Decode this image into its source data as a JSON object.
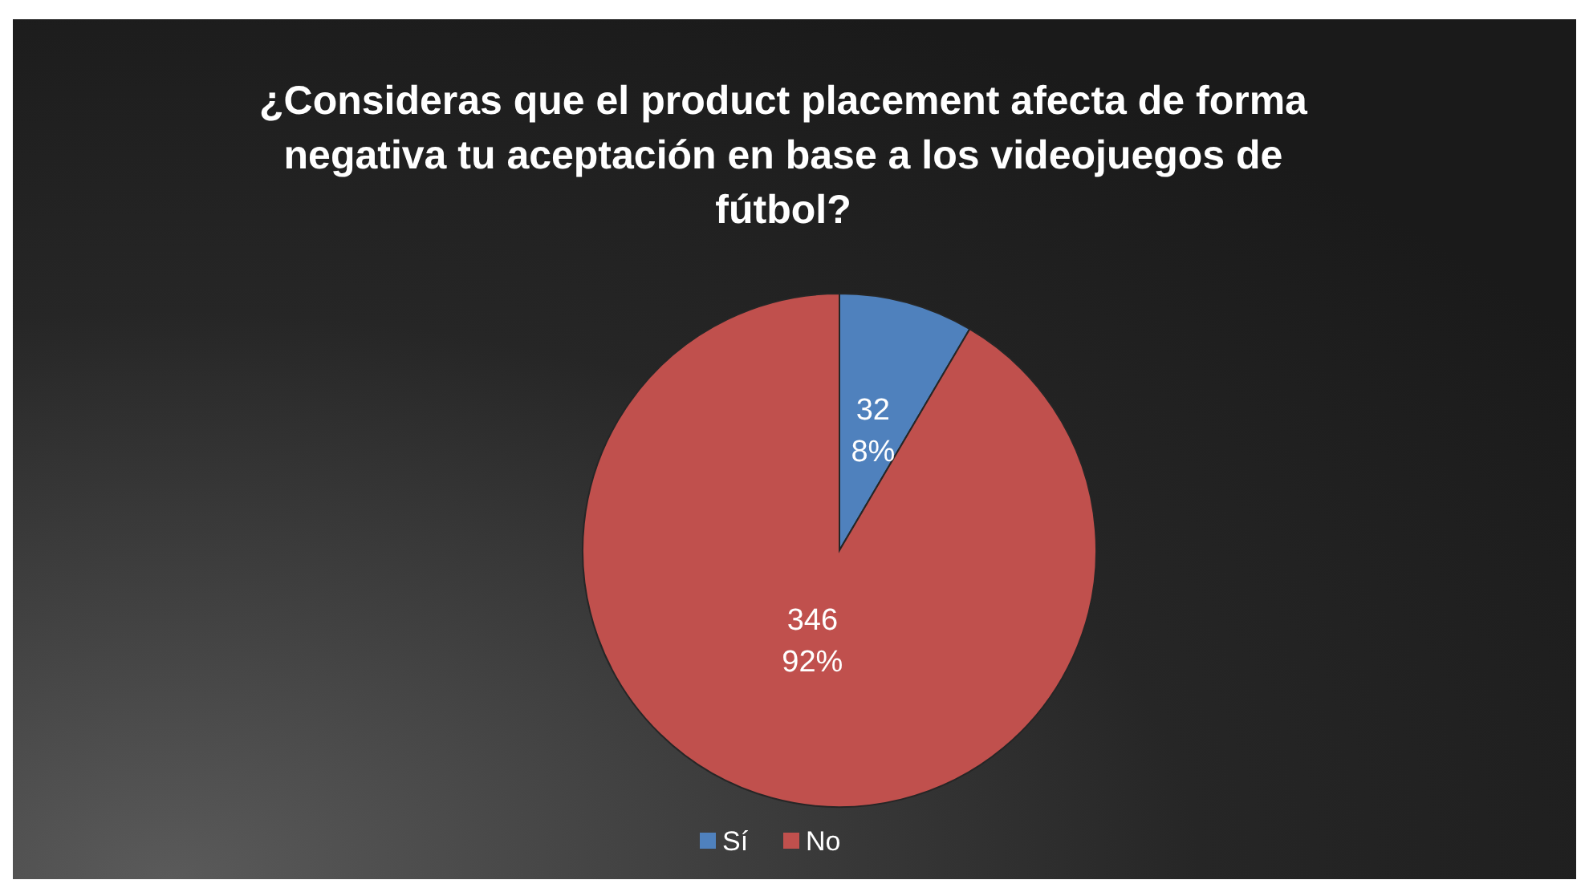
{
  "chart_data": {
    "type": "pie",
    "title": "¿Consideras que el product placement afecta de forma negativa tu aceptación en base a los videojuegos de fútbol?",
    "categories": [
      "Sí",
      "No"
    ],
    "values": [
      32,
      346
    ],
    "colors": [
      "#4f81bd",
      "#c0504d"
    ],
    "value_labels": [
      "32\n8%",
      "346\n92%"
    ],
    "legend": "bottom"
  }
}
